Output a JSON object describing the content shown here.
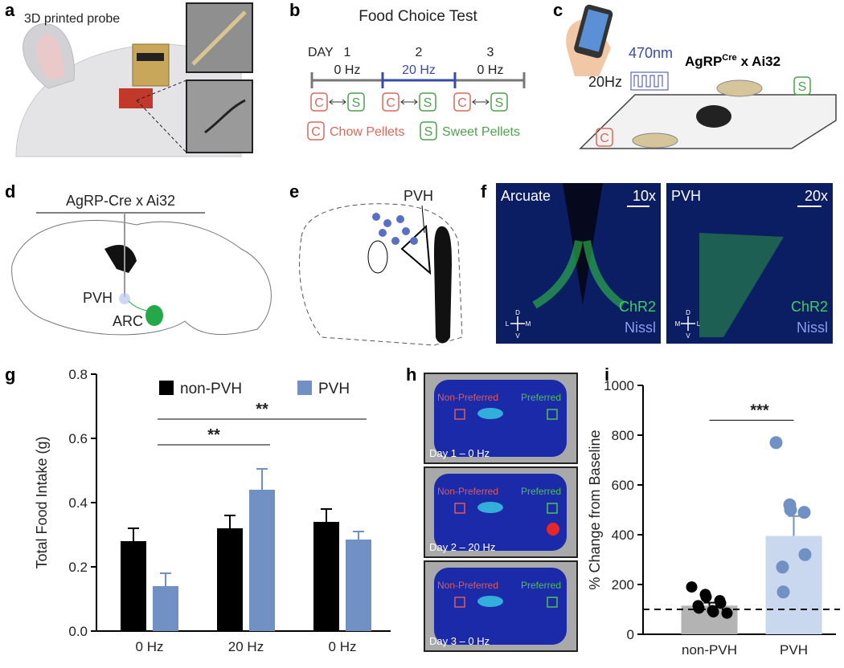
{
  "letters": [
    "a",
    "b",
    "c",
    "d",
    "e",
    "f",
    "g",
    "h",
    "i"
  ],
  "panels": {
    "a": {
      "title": "3D printed probe"
    },
    "b": {
      "title": "Food Choice Test",
      "day_label": "DAY",
      "days": [
        "1",
        "2",
        "3"
      ],
      "frequencies": [
        "0 Hz",
        "20 Hz",
        "0 Hz"
      ],
      "boxes": [
        "C",
        "S",
        "C",
        "S",
        "C",
        "S"
      ],
      "legend": [
        {
          "key": "C",
          "text": "Chow Pellets"
        },
        {
          "key": "S",
          "text": "Sweet Pellets"
        }
      ]
    },
    "c": {
      "wavelength": "470nm",
      "frequency": "20Hz",
      "genotype": "AgRP",
      "genotype_sup": "Cre",
      "genotype_rest": "x Ai32",
      "boxes": [
        "S",
        "C"
      ]
    },
    "d": {
      "title": "AgRP-Cre x Ai32",
      "labels": [
        "PVH",
        "ARC"
      ]
    },
    "e": {
      "label": "PVH"
    },
    "f": {
      "images": [
        {
          "region": "Arcuate",
          "magnification": "10x",
          "stains": [
            "ChR2",
            "Nissl"
          ],
          "compass": [
            "D",
            "L",
            "M",
            "V"
          ]
        },
        {
          "region": "PVH",
          "magnification": "20x",
          "stains": [
            "ChR2",
            "Nissl"
          ],
          "compass": [
            "D",
            "M",
            "L",
            "V"
          ]
        }
      ]
    },
    "h": {
      "images": [
        {
          "labels": [
            "Non-Preferred",
            "Preferred"
          ],
          "caption": "Day 1 – 0 Hz"
        },
        {
          "labels": [
            "Non-Preferred",
            "Preferred"
          ],
          "caption": "Day 2 – 20 Hz"
        },
        {
          "labels": [
            "Non-Preferred",
            "Preferred"
          ],
          "caption": "Day 3 – 0 Hz"
        }
      ]
    }
  },
  "chart_data": [
    {
      "type": "bar",
      "ylabel": "Total Food Intake (g)",
      "categories": [
        "0 Hz",
        "20 Hz",
        "0 Hz"
      ],
      "series": [
        {
          "name": "non-PVH",
          "color": "#000000",
          "values": [
            0.28,
            0.32,
            0.34
          ],
          "errors": [
            0.04,
            0.04,
            0.04
          ]
        },
        {
          "name": "PVH",
          "color": "#7191c4",
          "values": [
            0.14,
            0.44,
            0.285
          ],
          "errors": [
            0.04,
            0.065,
            0.025
          ]
        }
      ],
      "ylim": [
        0,
        0.8
      ],
      "yticks": [
        {
          "value": 0,
          "label": "0.0"
        },
        0.2,
        0.4,
        0.6,
        0.8
      ],
      "annotations": [
        {
          "text": "**",
          "y": 0.58,
          "series": 1,
          "categories": [
            0,
            1
          ]
        },
        {
          "text": "**",
          "y": 0.66,
          "series": 1,
          "categories": [
            0,
            2
          ]
        }
      ]
    },
    {
      "type": "bar",
      "ylabel": "% Change from Baseline",
      "categories": [
        "non-PVH",
        "PVH"
      ],
      "values": [
        115,
        395
      ],
      "errors": [
        12,
        80
      ],
      "colors": [
        "#b3b3b3",
        "#c9d8ee"
      ],
      "points": [
        [
          190,
          160,
          150,
          135,
          125,
          115,
          105,
          95,
          90,
          85
        ],
        [
          770,
          520,
          500,
          490,
          320,
          270,
          170
        ]
      ],
      "point_colors": [
        "#000000",
        "#7191c4"
      ],
      "baseline": 100,
      "ylim": [
        0,
        1000
      ],
      "yticks": [
        0,
        200,
        400,
        600,
        800,
        1000
      ],
      "annotations": [
        {
          "text": "***",
          "y": 860,
          "categories": [
            0,
            1
          ]
        }
      ]
    }
  ]
}
